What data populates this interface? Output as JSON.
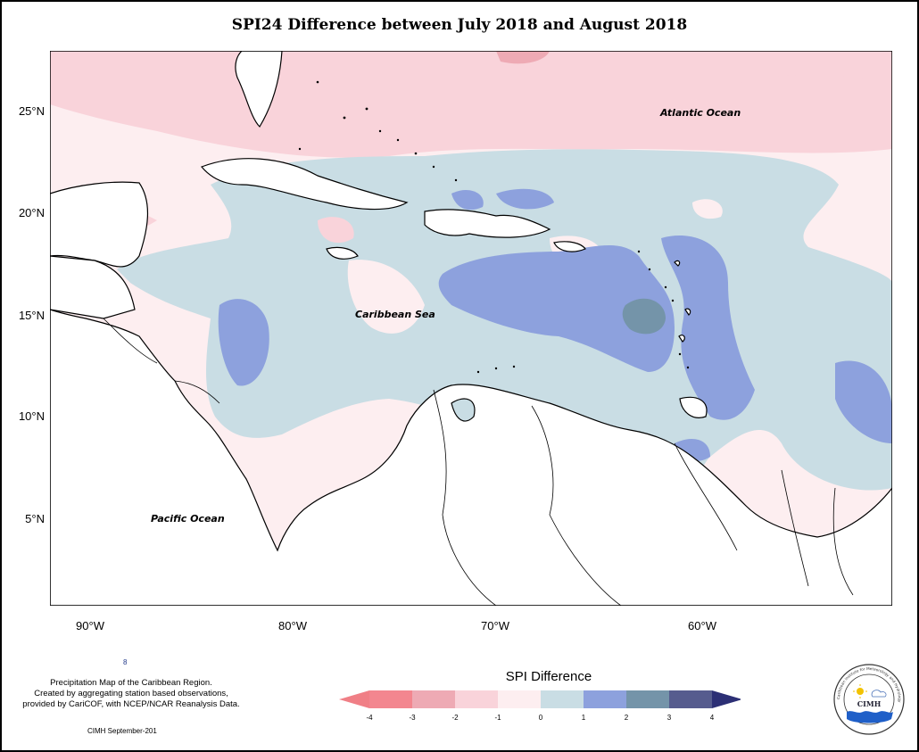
{
  "title": "SPI24 Difference between July 2018 and August 2018",
  "axes": {
    "lat_labels": [
      "25°N",
      "20°N",
      "15°N",
      "10°N",
      "5°N"
    ],
    "lon_labels": [
      "90°W",
      "80°W",
      "70°W",
      "60°W"
    ]
  },
  "labels": {
    "atlantic": "Atlantic Ocean",
    "caribbean": "Caribbean Sea",
    "pacific": "Pacific Ocean"
  },
  "legend": {
    "title": "SPI Difference",
    "ticks": [
      "-4",
      "-3",
      "-2",
      "-1",
      "0",
      "1",
      "2",
      "3",
      "4"
    ],
    "colors": [
      "#f3868f",
      "#eeaab4",
      "#f9d3da",
      "#fdeef0",
      "#c9dde4",
      "#8da1dd",
      "#7494a9",
      "#565c8e"
    ],
    "arrow_left_color": "#f07f86",
    "arrow_right_color": "#2c2f75"
  },
  "footer": {
    "note_lines": [
      "Precipitation Map of the Caribbean Region.",
      "Created by aggregating station based observations,",
      "provided by CariCOF, with NCEP/NCAR Reanalysis Data."
    ],
    "mark": "8",
    "credit": "CIMH September-201"
  },
  "logo": {
    "ring_text": "Caribbean Institute for Meteorology and Hydrology",
    "center_text": "CIMH"
  },
  "colors": {
    "land": "#ffffff",
    "coast": "#000000"
  }
}
